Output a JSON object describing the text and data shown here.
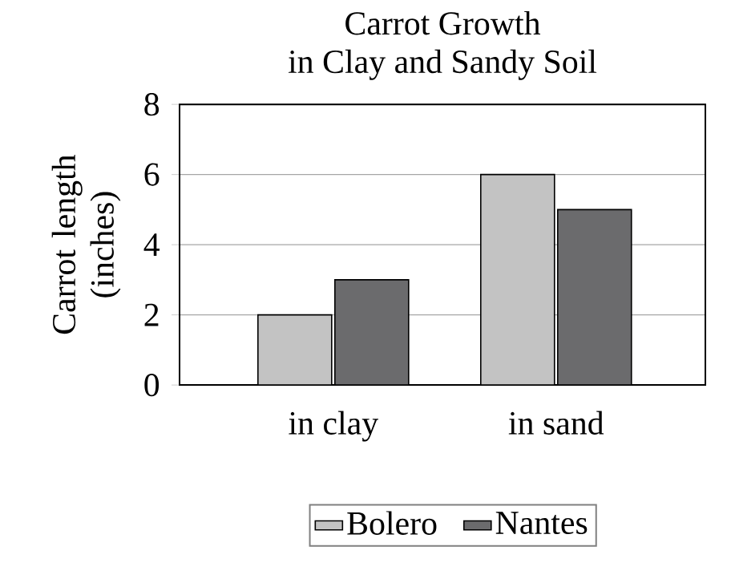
{
  "chart_data": {
    "type": "bar",
    "title": "Carrot Growth",
    "subtitle": "in Clay and Sandy Soil",
    "ylabel": "Carrot length (inches)",
    "categories": [
      "in clay",
      "in sand"
    ],
    "series": [
      {
        "name": "Bolero",
        "color": "#c3c3c3",
        "values": [
          2,
          6
        ]
      },
      {
        "name": "Nantes",
        "color": "#6b6b6d",
        "values": [
          3,
          5
        ]
      }
    ],
    "ylim": [
      0,
      8
    ],
    "yticks": [
      0,
      2,
      4,
      6,
      8
    ],
    "grid": "y",
    "legend": "bottom"
  }
}
